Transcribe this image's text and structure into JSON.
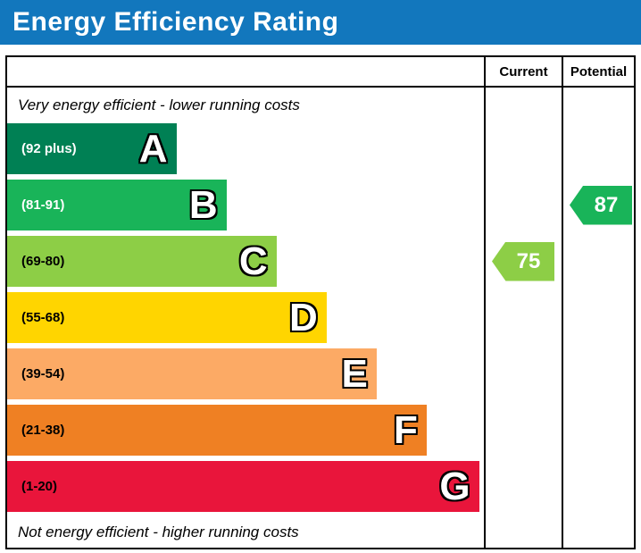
{
  "header": {
    "title": "Energy Efficiency Rating",
    "bg_color": "#1277bd"
  },
  "columns": {
    "current_label": "Current",
    "potential_label": "Potential"
  },
  "notes": {
    "top": "Very energy efficient - lower running costs",
    "bottom": "Not energy efficient - higher running costs"
  },
  "bands": [
    {
      "letter": "A",
      "range": "(92 plus)",
      "color": "#008054",
      "width_pct": 35.5,
      "range_text_color": "#ffffff"
    },
    {
      "letter": "B",
      "range": "(81-91)",
      "color": "#19b459",
      "width_pct": 46,
      "range_text_color": "#ffffff"
    },
    {
      "letter": "C",
      "range": "(69-80)",
      "color": "#8dce46",
      "width_pct": 56.5,
      "range_text_color": "#000000"
    },
    {
      "letter": "D",
      "range": "(55-68)",
      "color": "#ffd500",
      "width_pct": 67,
      "range_text_color": "#000000"
    },
    {
      "letter": "E",
      "range": "(39-54)",
      "color": "#fcaa65",
      "width_pct": 77.5,
      "range_text_color": "#000000"
    },
    {
      "letter": "F",
      "range": "(21-38)",
      "color": "#ef8023",
      "width_pct": 88,
      "range_text_color": "#000000"
    },
    {
      "letter": "G",
      "range": "(1-20)",
      "color": "#e9153b",
      "width_pct": 99,
      "range_text_color": "#000000"
    }
  ],
  "current": {
    "value": "75",
    "band_index": 2,
    "color": "#8dce46"
  },
  "potential": {
    "value": "87",
    "band_index": 1,
    "color": "#19b459"
  },
  "chart_data": {
    "type": "bar",
    "title": "Energy Efficiency Rating",
    "categories": [
      "A (92 plus)",
      "B (81-91)",
      "C (69-80)",
      "D (55-68)",
      "E (39-54)",
      "F (21-38)",
      "G (1-20)"
    ],
    "values": [
      35.5,
      46,
      56.5,
      67,
      77.5,
      88,
      99
    ],
    "value_unit": "bar width as percent of scale area",
    "band_colors": [
      "#008054",
      "#19b459",
      "#8dce46",
      "#ffd500",
      "#fcaa65",
      "#ef8023",
      "#e9153b"
    ],
    "markers": [
      {
        "name": "Current",
        "value": 75,
        "band": "C",
        "color": "#8dce46"
      },
      {
        "name": "Potential",
        "value": 87,
        "band": "B",
        "color": "#19b459"
      }
    ],
    "top_label": "Very energy efficient - lower running costs",
    "bottom_label": "Not energy efficient - higher running costs",
    "legend_position": "none",
    "grid": false
  }
}
